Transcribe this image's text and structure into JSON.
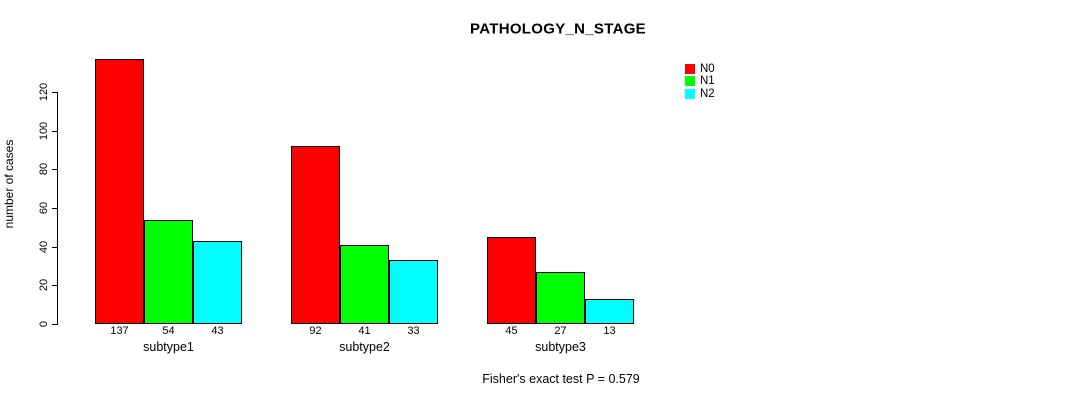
{
  "title": "PATHOLOGY_N_STAGE",
  "y_axis": {
    "label": "number of cases",
    "ticks": [
      0,
      20,
      40,
      60,
      80,
      100,
      120
    ]
  },
  "footer": "Fisher's exact test P = 0.579",
  "legend": {
    "items": [
      {
        "label": "N0",
        "color": "#ff0000"
      },
      {
        "label": "N1",
        "color": "#00ff00"
      },
      {
        "label": "N2",
        "color": "#00ffff"
      }
    ]
  },
  "chart_data": {
    "type": "bar",
    "title": "PATHOLOGY_N_STAGE",
    "categories": [
      "subtype1",
      "subtype2",
      "subtype3"
    ],
    "series": [
      {
        "name": "N0",
        "color": "#ff0000",
        "values": [
          137,
          92,
          45
        ]
      },
      {
        "name": "N1",
        "color": "#00ff00",
        "values": [
          54,
          41,
          27
        ]
      },
      {
        "name": "N2",
        "color": "#00ffff",
        "values": [
          43,
          33,
          13
        ]
      }
    ],
    "ylabel": "number of cases",
    "xlabel": "",
    "ylim": [
      0,
      137
    ],
    "yticks": [
      0,
      20,
      40,
      60,
      80,
      100,
      120
    ],
    "grid": false,
    "bar_value_labels_shown": true,
    "legend_position": "top-right",
    "annotation": "Fisher's exact test P = 0.579"
  }
}
